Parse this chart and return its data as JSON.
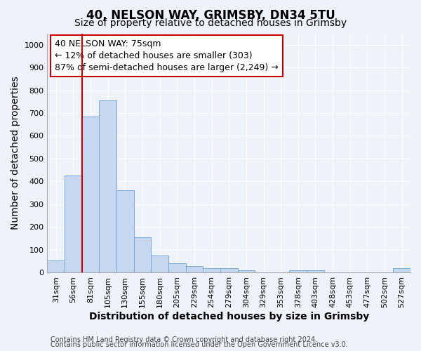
{
  "title": "40, NELSON WAY, GRIMSBY, DN34 5TU",
  "subtitle": "Size of property relative to detached houses in Grimsby",
  "xlabel": "Distribution of detached houses by size in Grimsby",
  "ylabel": "Number of detached properties",
  "categories": [
    "31sqm",
    "56sqm",
    "81sqm",
    "105sqm",
    "130sqm",
    "155sqm",
    "180sqm",
    "205sqm",
    "229sqm",
    "254sqm",
    "279sqm",
    "304sqm",
    "329sqm",
    "353sqm",
    "378sqm",
    "403sqm",
    "428sqm",
    "453sqm",
    "477sqm",
    "502sqm",
    "527sqm"
  ],
  "values": [
    52,
    425,
    685,
    755,
    360,
    153,
    74,
    40,
    27,
    18,
    18,
    10,
    0,
    0,
    10,
    8,
    0,
    0,
    0,
    0,
    18
  ],
  "bar_color": "#c5d8f0",
  "bar_edge_color": "#7aaad4",
  "vline_x_index": 2,
  "vline_color": "#cc0000",
  "annotation_text": "40 NELSON WAY: 75sqm\n← 12% of detached houses are smaller (303)\n87% of semi-detached houses are larger (2,249) →",
  "annotation_box_color": "white",
  "annotation_box_edge": "#cc0000",
  "ylim": [
    0,
    1050
  ],
  "yticks": [
    0,
    100,
    200,
    300,
    400,
    500,
    600,
    700,
    800,
    900,
    1000
  ],
  "footer_line1": "Contains HM Land Registry data © Crown copyright and database right 2024.",
  "footer_line2": "Contains public sector information licensed under the Open Government Licence v3.0.",
  "background_color": "#eef2f9",
  "grid_color": "#ffffff",
  "title_fontsize": 12,
  "subtitle_fontsize": 10,
  "axis_label_fontsize": 10,
  "tick_fontsize": 8,
  "annotation_fontsize": 9,
  "footer_fontsize": 7
}
